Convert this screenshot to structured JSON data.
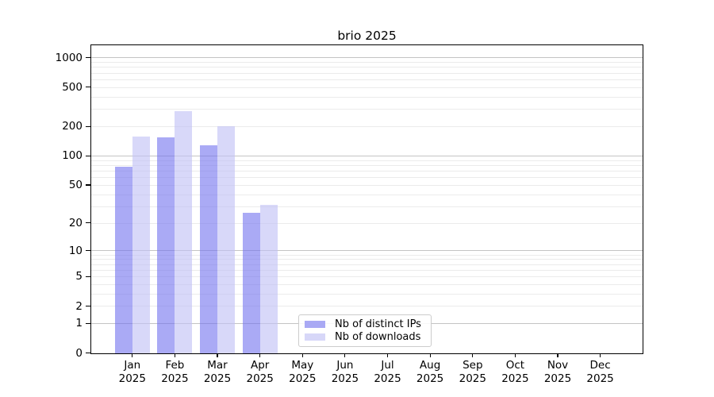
{
  "chart_data": {
    "type": "bar",
    "title": "brio 2025",
    "categories": [
      "Jan",
      "Feb",
      "Mar",
      "Apr",
      "May",
      "Jun",
      "Jul",
      "Aug",
      "Sep",
      "Oct",
      "Nov",
      "Dec"
    ],
    "category_year": "2025",
    "series": [
      {
        "name": "Nb of distinct IPs",
        "values": [
          78,
          155,
          128,
          26,
          null,
          null,
          null,
          null,
          null,
          null,
          null,
          null
        ],
        "color": "rgba(113,113,238,0.60)",
        "legend_color": "#a9a9f4"
      },
      {
        "name": "Nb of downloads",
        "values": [
          158,
          290,
          200,
          31,
          null,
          null,
          null,
          null,
          null,
          null,
          null,
          null
        ],
        "color": "rgba(192,192,245,0.62)",
        "legend_color": "#d7d7f8"
      }
    ],
    "y_axis": {
      "scale": "log1p",
      "tick_values": [
        0,
        1,
        2,
        5,
        10,
        20,
        50,
        100,
        200,
        500,
        1000
      ],
      "tick_labels": [
        "0",
        "1",
        "2",
        "5",
        "10",
        "20",
        "50",
        "100",
        "200",
        "500",
        "1000"
      ],
      "major_gridlines": [
        1,
        10,
        100,
        1000
      ],
      "minor_gridlines": [
        2,
        3,
        4,
        5,
        6,
        7,
        8,
        9,
        20,
        30,
        40,
        50,
        60,
        70,
        80,
        90,
        200,
        300,
        400,
        500,
        600,
        700,
        800,
        900
      ],
      "range": [
        0,
        1340
      ]
    },
    "xlabel": "",
    "ylabel": "",
    "grid": "on",
    "legend": {
      "position": "lower center",
      "entries": [
        "Nb of distinct IPs",
        "Nb of downloads"
      ]
    }
  },
  "colors": {
    "bar_distinct_ips": "#a9a9f4",
    "bar_downloads": "#d7d7f8",
    "major_grid": "#c4c4c4",
    "minor_grid": "#ebebeb",
    "spine": "#000000",
    "background": "#ffffff"
  }
}
